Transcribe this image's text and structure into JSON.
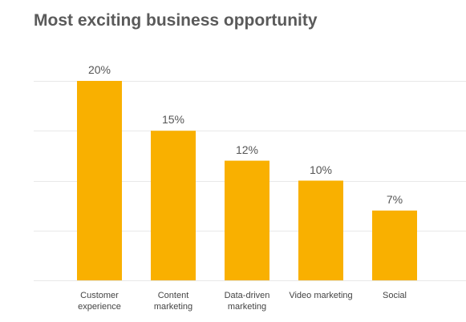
{
  "chart_data": {
    "type": "bar",
    "title": "Most exciting business opportunity",
    "categories": [
      "Customer experience",
      "Content marketing",
      "Data-driven marketing",
      "Video marketing",
      "Social"
    ],
    "values": [
      20,
      15,
      12,
      10,
      7
    ],
    "value_labels": [
      "20%",
      "15%",
      "12%",
      "10%",
      "7%"
    ],
    "color": "#f9b000",
    "ylim": [
      0,
      20
    ],
    "yticks": [
      0,
      5,
      10,
      15,
      20
    ],
    "grid": true
  }
}
